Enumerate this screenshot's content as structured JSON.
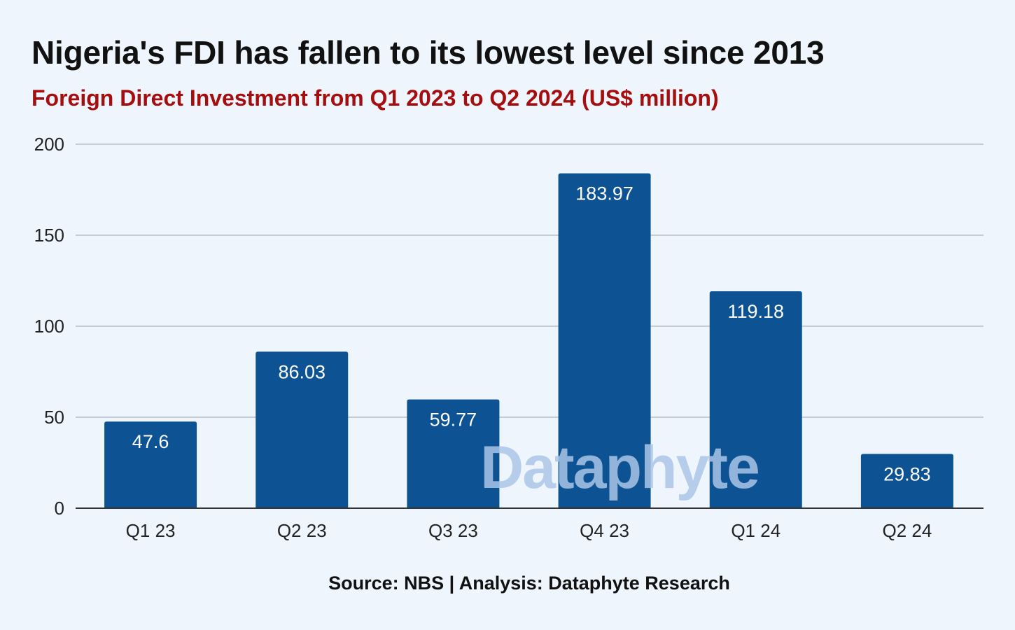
{
  "title": "Nigeria's FDI has fallen to its lowest level since 2013",
  "subtitle": "Foreign Direct Investment from Q1 2023 to Q2 2024 (US$ million)",
  "source": "Source: NBS | Analysis: Dataphyte Research",
  "watermark": "Dataphyte",
  "colors": {
    "background": "#eff5fc",
    "bar": "#0d5394",
    "subtitle": "#a50e0e",
    "grid": "#c4ccd6"
  },
  "chart_data": {
    "type": "bar",
    "categories": [
      "Q1 23",
      "Q2 23",
      "Q3 23",
      "Q4 23",
      "Q1 24",
      "Q2 24"
    ],
    "values": [
      47.6,
      86.03,
      59.77,
      183.97,
      119.18,
      29.83
    ],
    "value_labels": [
      "47.6",
      "86.03",
      "59.77",
      "183.97",
      "119.18",
      "29.83"
    ],
    "ylim": [
      0,
      200
    ],
    "yticks": [
      0,
      50,
      100,
      150,
      200
    ],
    "grid": true,
    "legend": "none"
  }
}
